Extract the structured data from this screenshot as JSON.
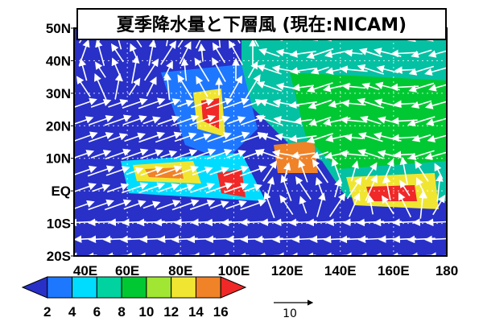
{
  "title": "夏季降水量と下層風 (現在:NICAM)",
  "latitude_labels": [
    "50N",
    "40N",
    "30N",
    "20N",
    "10N",
    "EQ",
    "10S",
    "20S"
  ],
  "longitude_labels": [
    "40E",
    "60E",
    "80E",
    "100E",
    "120E",
    "140E",
    "160E",
    "180"
  ],
  "colorbar": {
    "labels": [
      "2",
      "4",
      "6",
      "8",
      "10",
      "12",
      "14",
      "16"
    ],
    "colors": [
      "#2830c8",
      "#1e78ff",
      "#00dcff",
      "#00d2a0",
      "#00c832",
      "#a0e632",
      "#f0e632",
      "#f08228",
      "#f02828"
    ]
  },
  "vector_reference": {
    "label": "10"
  }
}
